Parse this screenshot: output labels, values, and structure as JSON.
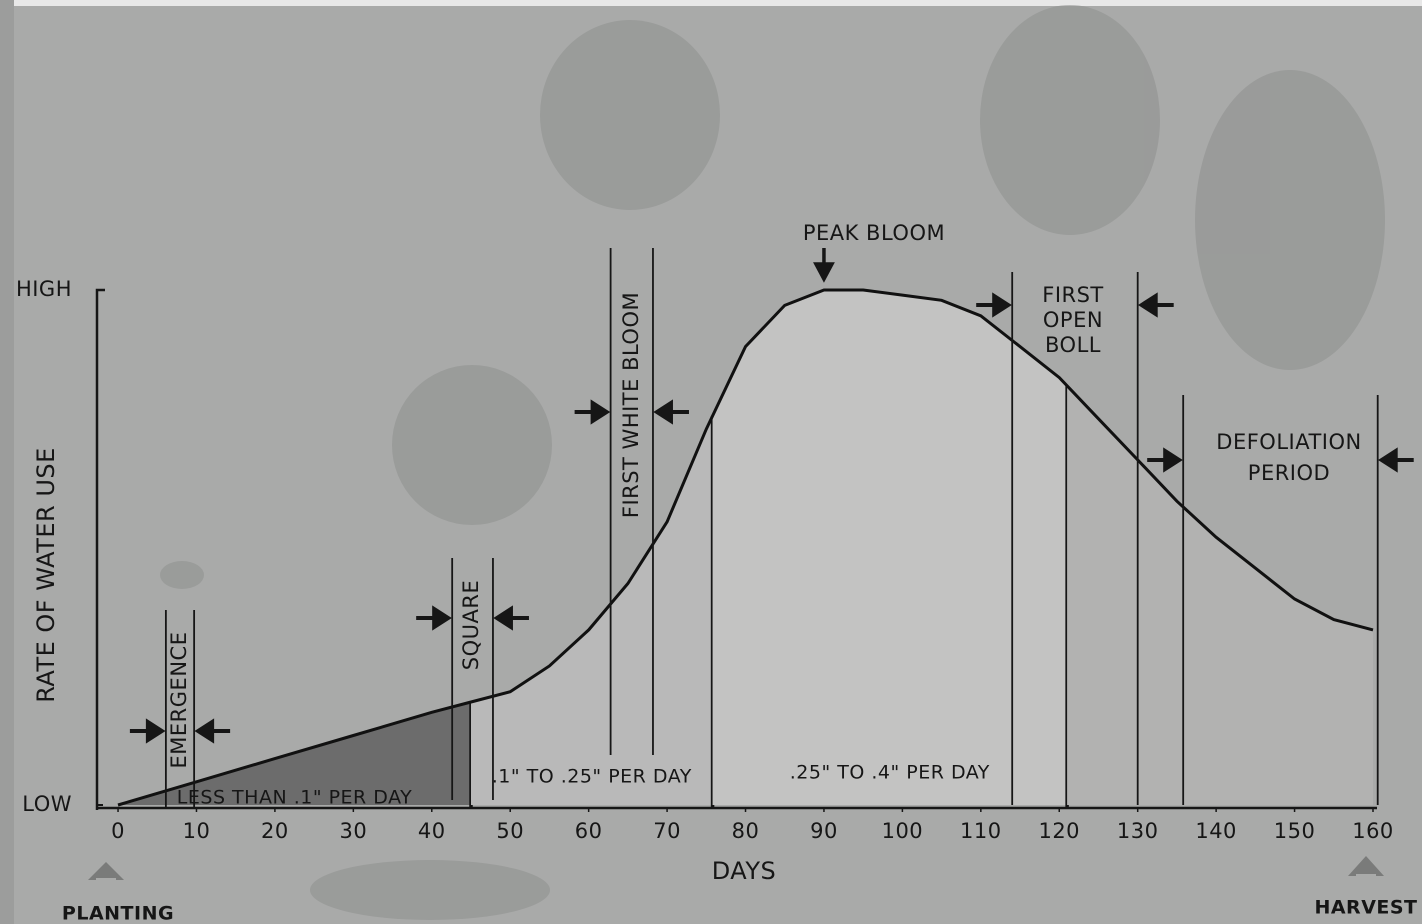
{
  "chart_data": {
    "type": "area",
    "x_title": "DAYS",
    "y_title": "RATE OF WATER USE",
    "x": [
      0,
      10,
      20,
      30,
      40,
      45,
      50,
      55,
      60,
      65,
      70,
      75,
      80,
      85,
      90,
      95,
      100,
      105,
      110,
      115,
      120,
      125,
      130,
      135,
      140,
      145,
      150,
      155,
      160
    ],
    "values": [
      0,
      0.045,
      0.09,
      0.135,
      0.18,
      0.2,
      0.22,
      0.27,
      0.34,
      0.43,
      0.55,
      0.73,
      0.89,
      0.97,
      1.0,
      1.0,
      0.99,
      0.98,
      0.95,
      0.89,
      0.83,
      0.75,
      0.67,
      0.59,
      0.52,
      0.46,
      0.4,
      0.36,
      0.34
    ],
    "color": "#111111",
    "xlim": [
      -2.3,
      160
    ],
    "ylim": [
      0,
      1
    ],
    "xticks": [
      0,
      10,
      20,
      30,
      40,
      50,
      60,
      70,
      80,
      90,
      100,
      110,
      120,
      130,
      140,
      150,
      160
    ],
    "yticks": [
      {
        "value": 0,
        "label": "LOW"
      },
      {
        "value": 1,
        "label": "HIGH"
      }
    ],
    "zones": [
      {
        "label": "LESS THAN .1\" PER DAY",
        "start": 0,
        "end": 45,
        "color": "#6c6c6c"
      },
      {
        "label": ".1\" TO .25\" PER DAY",
        "start": 45,
        "end": 75.8,
        "color": "#b9b9b9"
      },
      {
        "label": ".25\" TO .4\" PER DAY",
        "start": 75.8,
        "end": 121,
        "color": "#c3c3c2"
      },
      {
        "start": 121,
        "end": 160,
        "color": "#b2b2b1"
      }
    ],
    "stages": [
      {
        "label": [
          "EMERGENCE"
        ],
        "start": 6.1,
        "end": 9.7,
        "orientation": "vertical"
      },
      {
        "label": [
          "SQUARE"
        ],
        "start": 42.6,
        "end": 47.8,
        "orientation": "vertical"
      },
      {
        "label": [
          "FIRST WHITE BLOOM"
        ],
        "start": 62.8,
        "end": 68.2,
        "orientation": "vertical"
      },
      {
        "label": [
          "FIRST",
          "OPEN",
          "BOLL"
        ],
        "start": 114,
        "end": 130,
        "orientation": "horizontal"
      },
      {
        "label": [
          "DEFOLIATION",
          "PERIOD"
        ],
        "start": 135.8,
        "end": 160.6,
        "orientation": "horizontal"
      }
    ],
    "peak": {
      "label": "PEAK BLOOM",
      "x": 90
    },
    "start_label": "PLANTING",
    "end_label": "HARVEST"
  }
}
